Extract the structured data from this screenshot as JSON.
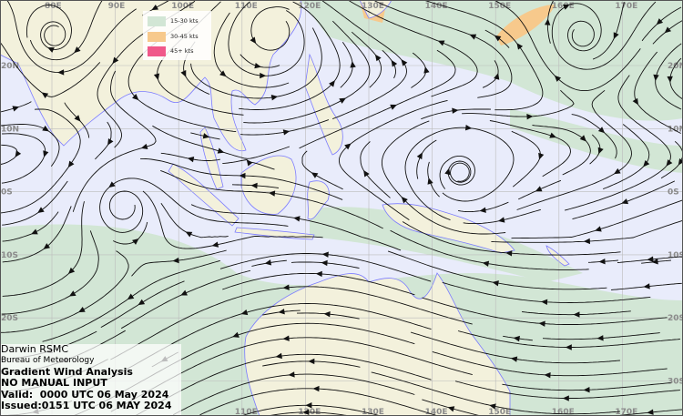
{
  "colors": {
    "ocean": "#e9ecfb",
    "land": "#f3f1dc",
    "coast": "#7b7bff",
    "speed_15_30": "#d2e6d5",
    "speed_30_45": "#f7c98c",
    "speed_45_plus": "#f0588a",
    "streamline": "#111111",
    "gridlabel": "#8a8a8a"
  },
  "longitude_labels": [
    "80E",
    "90E",
    "100E",
    "110E",
    "120E",
    "130E",
    "140E",
    "150E",
    "160E",
    "170E"
  ],
  "latitude_labels": [
    "20N",
    "10N",
    "0S",
    "10S",
    "20S",
    "30S"
  ],
  "legend": {
    "items": [
      {
        "label": "15-30 kts",
        "color": "#d2e6d5"
      },
      {
        "label": "30-45 kts",
        "color": "#f7c98c"
      },
      {
        "label": "45+ kts",
        "color": "#f0588a"
      }
    ]
  },
  "info": {
    "centre": "Darwin RSMC",
    "agency": "Bureau of Meteorology",
    "product": "Gradient Wind Analysis",
    "input": "NO MANUAL INPUT",
    "valid": "Valid:  0000 UTC 06 May 2024",
    "issued": "Issued:0151 UTC 06 MAY 2024"
  }
}
